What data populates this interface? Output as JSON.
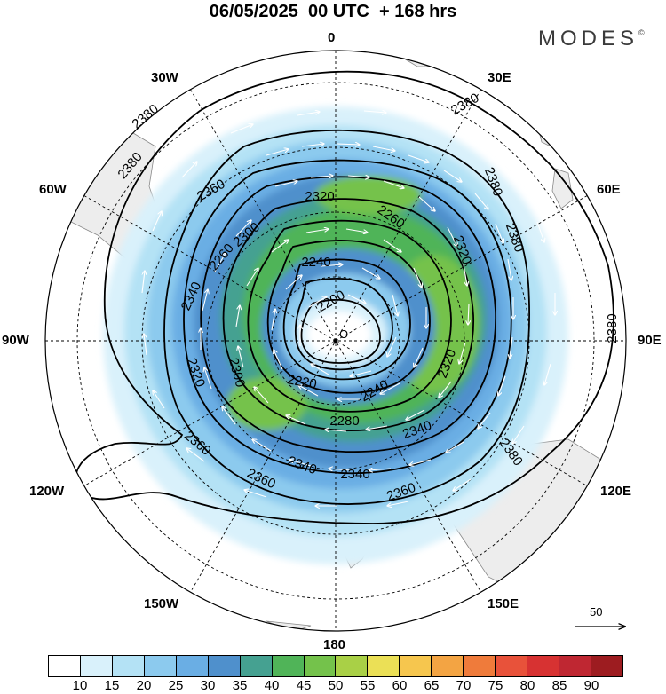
{
  "title": "06/05/2025  00 UTC  + 168 hrs",
  "brand": "MODES",
  "brand_mark": "©",
  "longitude_labels": [
    {
      "id": "lon-0",
      "text": "0"
    },
    {
      "id": "lon-30e",
      "text": "30E"
    },
    {
      "id": "lon-60e",
      "text": "60E"
    },
    {
      "id": "lon-90e",
      "text": "90E"
    },
    {
      "id": "lon-120e",
      "text": "120E"
    },
    {
      "id": "lon-150e",
      "text": "150E"
    },
    {
      "id": "lon-180",
      "text": "180"
    },
    {
      "id": "lon-150w",
      "text": "150W"
    },
    {
      "id": "lon-120w",
      "text": "120W"
    },
    {
      "id": "lon-90w",
      "text": "90W"
    },
    {
      "id": "lon-60w",
      "text": "60W"
    },
    {
      "id": "lon-30w",
      "text": "30W"
    }
  ],
  "contour_labels": [
    "2380",
    "2380",
    "2380",
    "2380",
    "2380",
    "2380",
    "2380",
    "2360",
    "2360",
    "2360",
    "2360",
    "2340",
    "2340",
    "2340",
    "2340",
    "2320",
    "2320",
    "2320",
    "2320",
    "2300",
    "2300",
    "2280",
    "2260",
    "2260",
    "2240",
    "2240",
    "2220",
    "2200"
  ],
  "pole_marker": "O",
  "reference_vector_value": "50",
  "colorbar": {
    "colors": [
      "#ffffff",
      "#d9f1fb",
      "#b4e2f5",
      "#8ccaee",
      "#6aaee4",
      "#4f90cc",
      "#45a191",
      "#50b458",
      "#74c24b",
      "#a9d046",
      "#ebe056",
      "#f6c64e",
      "#f3a443",
      "#ef7b3b",
      "#e8523a",
      "#d73232",
      "#bf2732",
      "#9d1c20"
    ],
    "labels": [
      "10",
      "15",
      "20",
      "25",
      "30",
      "35",
      "40",
      "45",
      "50",
      "55",
      "60",
      "65",
      "70",
      "75",
      "80",
      "85",
      "90"
    ]
  }
}
